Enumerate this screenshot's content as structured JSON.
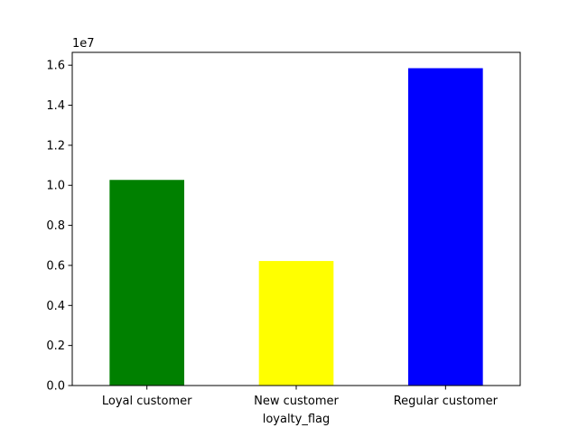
{
  "chart_data": {
    "type": "bar",
    "title": "",
    "xlabel": "loyalty_flag",
    "ylabel": "",
    "scale_label": "1e7",
    "categories": [
      "Loyal customer",
      "New customer",
      "Regular customer"
    ],
    "values": [
      10270000,
      6220000,
      15850000
    ],
    "colors": [
      "#008000",
      "#ffff00",
      "#0000ff"
    ],
    "ylim": [
      0,
      16640000
    ],
    "y_ticks": [
      0,
      2000000,
      4000000,
      6000000,
      8000000,
      10000000,
      12000000,
      14000000,
      16000000
    ],
    "y_tick_labels": [
      "0.0",
      "0.2",
      "0.4",
      "0.6",
      "0.8",
      "1.0",
      "1.2",
      "1.4",
      "1.6"
    ],
    "grid": false,
    "legend": "none"
  }
}
